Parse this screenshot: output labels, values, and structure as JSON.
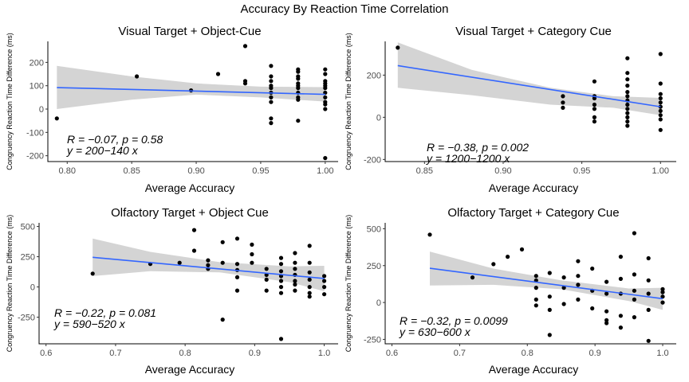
{
  "figure_title": "Accuracy By Reaction Time Correlation",
  "chart_data": [
    {
      "type": "scatter",
      "title": "Visual Target + Object-Cue",
      "xlabel": "Average Accuracy",
      "ylabel": "Congruency Reaction Time Difference (ms)",
      "xlim": [
        0.785,
        1.01
      ],
      "ylim": [
        -225,
        290
      ],
      "xticks": [
        0.8,
        0.85,
        0.9,
        0.95,
        1.0
      ],
      "xtick_labels": [
        "0.80",
        "0.85",
        "0.90",
        "0.95",
        "1.00"
      ],
      "yticks": [
        -200,
        -100,
        0,
        100,
        200
      ],
      "ytick_labels": [
        "-200",
        "-100",
        "0",
        "100",
        "200"
      ],
      "annotation_r": "R = −0.07, p = 0.58",
      "annotation_eq": "y = 200−140 x",
      "fit": {
        "x": [
          0.792,
          1.0
        ],
        "y": [
          92,
          63
        ]
      },
      "ci_band": {
        "x": [
          0.792,
          0.85,
          0.9,
          0.95,
          1.0
        ],
        "upper": [
          185,
          140,
          110,
          96,
          94
        ],
        "lower": [
          0,
          40,
          62,
          50,
          32
        ]
      },
      "points": {
        "x": [
          0.792,
          0.854,
          0.896,
          0.917,
          0.938,
          0.938,
          0.938,
          0.958,
          0.958,
          0.958,
          0.958,
          0.958,
          0.958,
          0.958,
          0.958,
          0.958,
          0.958,
          0.979,
          0.979,
          0.979,
          0.979,
          0.979,
          0.979,
          0.979,
          0.979,
          0.979,
          0.979,
          0.979,
          1.0,
          1.0,
          1.0,
          1.0,
          1.0,
          1.0,
          1.0,
          1.0,
          1.0,
          1.0,
          1.0,
          1.0
        ],
        "y": [
          -40,
          140,
          80,
          150,
          270,
          120,
          110,
          185,
          140,
          120,
          100,
          90,
          70,
          50,
          30,
          -40,
          -60,
          170,
          160,
          140,
          130,
          110,
          100,
          90,
          70,
          50,
          40,
          -50,
          170,
          150,
          120,
          110,
          100,
          90,
          70,
          50,
          30,
          20,
          0,
          -210
        ]
      }
    },
    {
      "type": "scatter",
      "title": "Visual Target + Category Cue",
      "xlabel": "Average Accuracy",
      "ylabel": "Congruency Reaction Time Difference (ms)",
      "xlim": [
        0.825,
        1.01
      ],
      "ylim": [
        -210,
        360
      ],
      "xticks": [
        0.85,
        0.9,
        0.95,
        1.0
      ],
      "xtick_labels": [
        "0.85",
        "0.90",
        "0.95",
        "1.00"
      ],
      "yticks": [
        -200,
        0,
        200
      ],
      "ytick_labels": [
        "-200",
        "0",
        "200"
      ],
      "annotation_r": "R = −0.38, p = 0.002",
      "annotation_eq": "y = 1200−1200 x",
      "fit": {
        "x": [
          0.833,
          1.0
        ],
        "y": [
          245,
          50
        ]
      },
      "ci_band": {
        "x": [
          0.833,
          0.88,
          0.93,
          0.97,
          1.0
        ],
        "upper": [
          355,
          225,
          140,
          100,
          92
        ],
        "lower": [
          140,
          105,
          60,
          45,
          10
        ]
      },
      "points": {
        "x": [
          0.833,
          0.938,
          0.938,
          0.938,
          0.958,
          0.958,
          0.958,
          0.958,
          0.958,
          0.958,
          0.958,
          0.979,
          0.979,
          0.979,
          0.979,
          0.979,
          0.979,
          0.979,
          0.979,
          0.979,
          0.979,
          0.979,
          0.979,
          0.979,
          1.0,
          1.0,
          1.0,
          1.0,
          1.0,
          1.0,
          1.0,
          1.0,
          1.0,
          1.0
        ],
        "y": [
          330,
          100,
          70,
          45,
          170,
          100,
          90,
          60,
          40,
          0,
          -20,
          280,
          210,
          180,
          150,
          120,
          100,
          80,
          60,
          40,
          20,
          0,
          -20,
          -40,
          300,
          160,
          110,
          90,
          70,
          50,
          30,
          10,
          -10,
          -60
        ]
      }
    },
    {
      "type": "scatter",
      "title": "Olfactory Target + Object Cue",
      "xlabel": "Average Accuracy",
      "ylabel": "Congruency Reaction Time Difference (ms)",
      "xlim": [
        0.59,
        1.02
      ],
      "ylim": [
        -470,
        530
      ],
      "xticks": [
        0.6,
        0.7,
        0.8,
        0.9,
        1.0
      ],
      "xtick_labels": [
        "0.6",
        "0.7",
        "0.8",
        "0.9",
        "1.0"
      ],
      "yticks": [
        -250,
        0,
        250,
        500
      ],
      "ytick_labels": [
        "-250",
        "0",
        "250",
        "500"
      ],
      "annotation_r": "R = −0.22, p = 0.081",
      "annotation_eq": "y = 590−520 x",
      "fit": {
        "x": [
          0.667,
          1.0
        ],
        "y": [
          245,
          70
        ]
      },
      "ci_band": {
        "x": [
          0.667,
          0.75,
          0.85,
          0.95,
          1.0
        ],
        "upper": [
          400,
          290,
          205,
          170,
          175
        ],
        "lower": [
          90,
          130,
          120,
          40,
          -35
        ]
      },
      "points": {
        "x": [
          0.667,
          0.75,
          0.792,
          0.813,
          0.813,
          0.833,
          0.833,
          0.833,
          0.854,
          0.854,
          0.854,
          0.875,
          0.875,
          0.875,
          0.875,
          0.875,
          0.896,
          0.896,
          0.896,
          0.917,
          0.917,
          0.917,
          0.917,
          0.938,
          0.938,
          0.938,
          0.938,
          0.938,
          0.938,
          0.938,
          0.938,
          0.958,
          0.958,
          0.958,
          0.958,
          0.958,
          0.958,
          0.958,
          0.979,
          0.979,
          0.979,
          0.979,
          0.979,
          0.979,
          0.979,
          1.0,
          1.0,
          1.0,
          1.0
        ],
        "y": [
          110,
          190,
          200,
          470,
          300,
          220,
          180,
          150,
          -270,
          370,
          200,
          400,
          190,
          140,
          80,
          -30,
          350,
          270,
          200,
          150,
          100,
          60,
          -30,
          240,
          190,
          130,
          90,
          50,
          0,
          -50,
          -430,
          280,
          200,
          150,
          100,
          50,
          20,
          -30,
          340,
          200,
          120,
          60,
          0,
          -50,
          -80,
          90,
          50,
          0,
          -60
        ]
      }
    },
    {
      "type": "scatter",
      "title": "Olfactory Target + Category Cue",
      "xlabel": "Average Accuracy",
      "ylabel": "Congruency Reaction Time Difference (ms)",
      "xlim": [
        0.59,
        1.02
      ],
      "ylim": [
        -280,
        540
      ],
      "xticks": [
        0.6,
        0.7,
        0.8,
        0.9,
        1.0
      ],
      "xtick_labels": [
        "0.6",
        "0.7",
        "0.8",
        "0.9",
        "1.0"
      ],
      "yticks": [
        -250,
        0,
        250,
        500
      ],
      "ytick_labels": [
        "-250",
        "0",
        "250",
        "500"
      ],
      "annotation_r": "R = −0.32, p = 0.0099",
      "annotation_eq": "y = 630−600 x",
      "fit": {
        "x": [
          0.656,
          1.0
        ],
        "y": [
          232,
          26
        ]
      },
      "ci_band": {
        "x": [
          0.656,
          0.75,
          0.85,
          0.95,
          1.0
        ],
        "upper": [
          345,
          230,
          150,
          95,
          100
        ],
        "lower": [
          115,
          120,
          90,
          10,
          -50
        ]
      },
      "points": {
        "x": [
          0.656,
          0.719,
          0.75,
          0.771,
          0.792,
          0.813,
          0.813,
          0.813,
          0.813,
          0.813,
          0.833,
          0.833,
          0.833,
          0.833,
          0.854,
          0.854,
          0.854,
          0.875,
          0.875,
          0.875,
          0.875,
          0.896,
          0.896,
          0.896,
          0.917,
          0.917,
          0.917,
          0.917,
          0.917,
          0.938,
          0.938,
          0.938,
          0.938,
          0.938,
          0.958,
          0.958,
          0.958,
          0.958,
          0.958,
          0.979,
          0.979,
          0.979,
          0.979,
          0.979,
          1.0,
          1.0,
          1.0,
          1.0
        ],
        "y": [
          460,
          170,
          260,
          310,
          360,
          180,
          150,
          100,
          20,
          -20,
          200,
          40,
          -50,
          -220,
          170,
          100,
          -10,
          280,
          180,
          120,
          20,
          230,
          80,
          -40,
          140,
          60,
          -60,
          -120,
          -140,
          310,
          160,
          60,
          -90,
          -170,
          470,
          190,
          80,
          20,
          -100,
          300,
          150,
          60,
          -50,
          -260,
          90,
          70,
          40,
          0
        ]
      }
    }
  ]
}
